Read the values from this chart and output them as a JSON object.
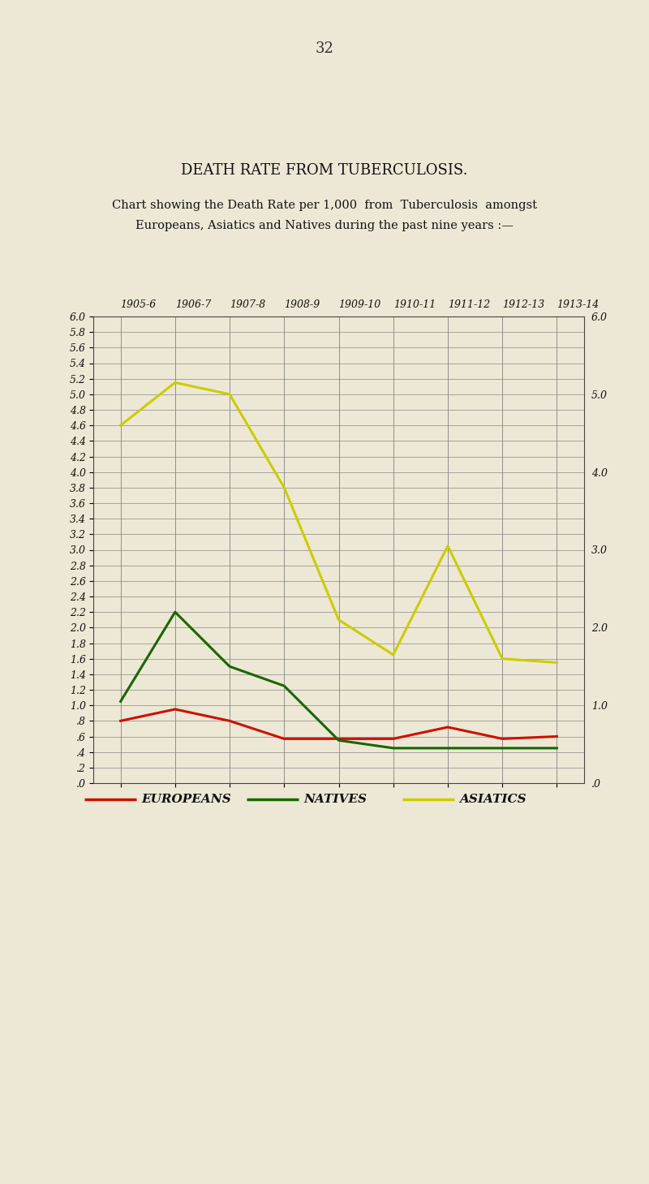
{
  "title": "DEATH RATE FROM TUBERCULOSIS.",
  "subtitle_line1": "Chart showing the Death Rate per 1,000  from  Tuberculosis  amongst",
  "subtitle_line2": "Europeans, Asiatics and Natives during the past nine years :—",
  "page_number": "32",
  "background_color": "#ede8d5",
  "years": [
    "1905-6",
    "1906-7",
    "1907-8",
    "1908-9",
    "1909-10",
    "1910-11",
    "1911-12",
    "1912-13",
    "1913-14"
  ],
  "europeans": [
    0.8,
    0.95,
    0.8,
    0.57,
    0.57,
    0.57,
    0.72,
    0.57,
    0.6
  ],
  "natives": [
    1.05,
    2.2,
    1.5,
    1.25,
    0.55,
    0.45,
    0.45,
    0.45,
    0.45
  ],
  "asiatics": [
    4.6,
    5.15,
    5.0,
    3.8,
    2.1,
    1.65,
    3.05,
    1.6,
    1.55
  ],
  "europeans_color": "#cc1100",
  "natives_color": "#1a6600",
  "asiatics_color": "#cccc00",
  "ylim": [
    0.0,
    6.0
  ],
  "ytick_step": 0.2,
  "right_ytick_positions": [
    0.0,
    1.0,
    2.0,
    3.0,
    4.0,
    5.0,
    6.0
  ],
  "legend_items": [
    "EUROPEANS",
    "NATIVES",
    "ASIATICS"
  ],
  "legend_colors": [
    "#cc1100",
    "#1a6600",
    "#cccc00"
  ],
  "line_width": 2.2,
  "grid_color": "#888888",
  "spine_color": "#444444"
}
